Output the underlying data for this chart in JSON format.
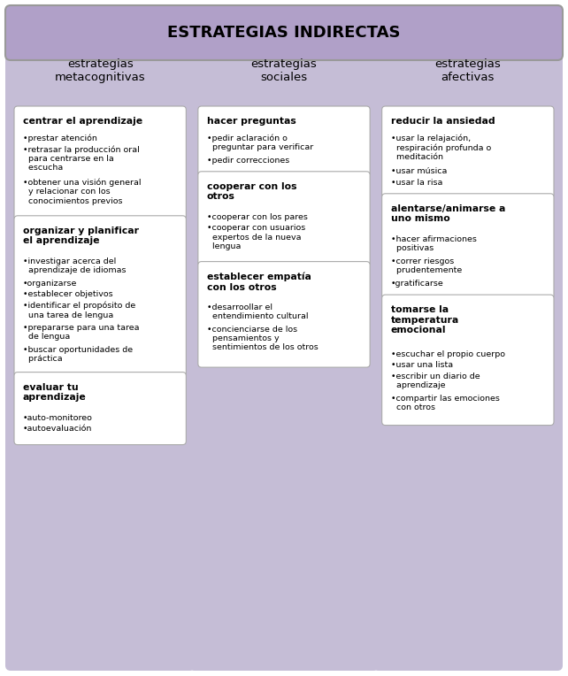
{
  "title": "ESTRATEGIAS INDIRECTAS",
  "title_bg": "#b0a0c8",
  "col_bg": "#c5bdd6",
  "box_bg": "#ffffff",
  "fig_bg": "#ffffff",
  "col_headers": [
    "estrategias\nmetacognitivas",
    "estrategias\nsociales",
    "estrategias\nafectivas"
  ],
  "columns": [
    {
      "boxes": [
        {
          "title": "centrar el aprendizaje",
          "items": [
            "•prestar atención",
            "•retrasar la producción oral\n  para centrarse en la\n  escucha",
            "•obtener una visión general\n  y relacionar con los\n  conocimientos previos"
          ]
        },
        {
          "title": "organizar y planificar\nel aprendizaje",
          "items": [
            "•investigar acerca del\n  aprendizaje de idiomas",
            "•organizarse",
            "•establecer objetivos",
            "•identificar el propósito de\n  una tarea de lengua",
            "•prepararse para una tarea\n  de lengua",
            "•buscar oportunidades de\n  práctica"
          ]
        },
        {
          "title": "evaluar tu\naprendizaje",
          "items": [
            "•auto-monitoreo",
            "•autoevaluación"
          ]
        }
      ]
    },
    {
      "boxes": [
        {
          "title": "hacer preguntas",
          "items": [
            "•pedir aclaración o\n  preguntar para verificar",
            "•pedir correcciones"
          ]
        },
        {
          "title": "cooperar con los\notros",
          "items": [
            "•cooperar con los pares",
            "•cooperar con usuarios\n  expertos de la nueva\n  lengua"
          ]
        },
        {
          "title": "establecer empatía\ncon los otros",
          "items": [
            "•desarroollar el\n  entendimiento cultural",
            "•concienciarse de los\n  pensamientos y\n  sentimientos de los otros"
          ]
        }
      ]
    },
    {
      "boxes": [
        {
          "title": "reducir la ansiedad",
          "items": [
            "•usar la relajación,\n  respiración profunda o\n  meditación",
            "•usar música",
            "•usar la risa"
          ]
        },
        {
          "title": "alentarse/animarse a\nuno mismo",
          "items": [
            "•hacer afirmaciones\n  positivas",
            "•correr riesgos\n  prudentemente",
            "•gratificarse"
          ]
        },
        {
          "title": "tomarse la\ntemperatura\nemocional",
          "items": [
            "•escuchar el propio cuerpo",
            "•usar una lista",
            "•escribir un diario de\n  aprendizaje",
            "•compartir las emociones\n  con otros"
          ]
        }
      ]
    }
  ]
}
